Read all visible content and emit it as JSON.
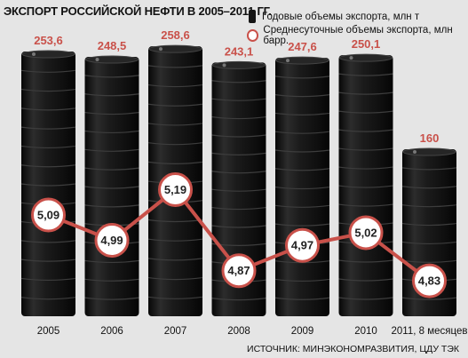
{
  "title": "ЭКСПОРТ РОССИЙСКОЙ НЕФТИ В 2005–2011 ГГ.",
  "legend": {
    "annual": "Годовые объемы экспорта, млн т",
    "daily": "Среднесуточные объемы экспорта, млн барр."
  },
  "source": "ИСТОЧНИК: МИНЭКОНОМРАЗВИТИЯ, ЦДУ ТЭК",
  "colors": {
    "barrel": "#151515",
    "value_label": "#c9514a",
    "line": "#c9514a",
    "background": "#e5e5e5"
  },
  "chart_data": {
    "type": "bar",
    "categories": [
      "2005",
      "2006",
      "2007",
      "2008",
      "2009",
      "2010",
      "2011, 8 месяцев"
    ],
    "series": [
      {
        "name": "Годовые объемы экспорта, млн т",
        "values": [
          253.6,
          248.5,
          258.6,
          243.1,
          247.6,
          250.1,
          160
        ],
        "labels": [
          "253,6",
          "248,5",
          "258,6",
          "243,1",
          "247,6",
          "250,1",
          "160"
        ]
      },
      {
        "name": "Среднесуточные объемы экспорта, млн барр.",
        "type": "line",
        "values": [
          5.09,
          4.99,
          5.19,
          4.87,
          4.97,
          5.02,
          4.83
        ],
        "labels": [
          "5,09",
          "4,99",
          "5,19",
          "4,87",
          "4,97",
          "5,02",
          "4,83"
        ]
      }
    ]
  }
}
